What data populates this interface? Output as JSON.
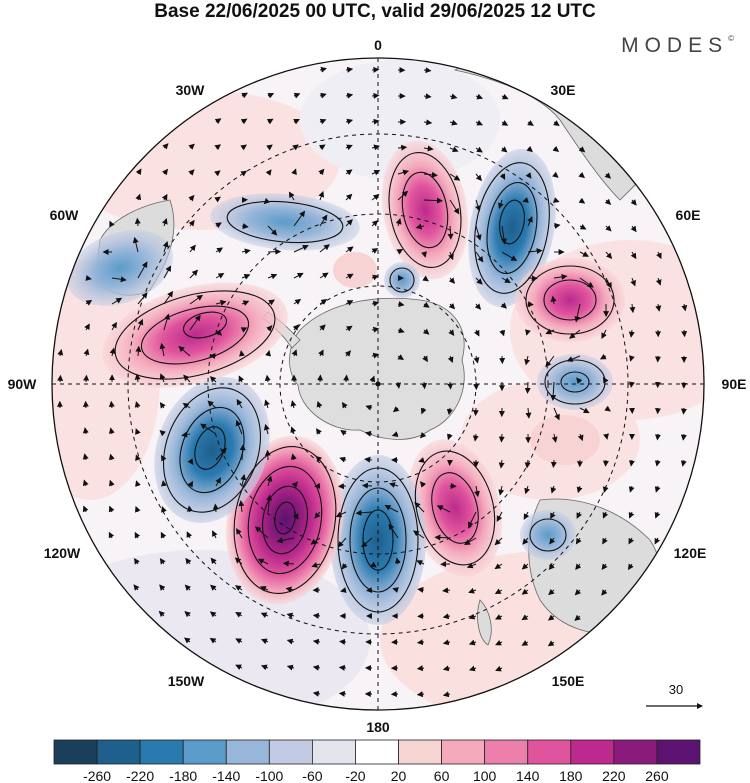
{
  "header": {
    "title": "Base 22/06/2025 00 UTC, valid 29/06/2025 12 UTC",
    "brand": "MODES",
    "brand_mark": "©"
  },
  "map": {
    "projection": "south-polar-stereographic",
    "longitude_labels": {
      "lon_0": "0",
      "lon_30e": "30E",
      "lon_60e": "60E",
      "lon_90e": "90E",
      "lon_120e": "120E",
      "lon_150e": "150E",
      "lon_180": "180",
      "lon_150w": "150W",
      "lon_120w": "120W",
      "lon_90w": "90W",
      "lon_60w": "60W",
      "lon_30w": "30W"
    },
    "reference_vector_label": "30",
    "anomaly_centers": [
      {
        "id": "A",
        "sign": "positive",
        "lon_label": "10E",
        "amplitude": 140
      },
      {
        "id": "B",
        "sign": "negative",
        "lon_label": "40E",
        "amplitude": -180
      },
      {
        "id": "C",
        "sign": "positive",
        "lon_label": "65E",
        "amplitude": 140
      },
      {
        "id": "D",
        "sign": "negative",
        "lon_label": "90E",
        "amplitude": -100
      },
      {
        "id": "E",
        "sign": "positive",
        "lon_label": "150E",
        "amplitude": 140
      },
      {
        "id": "F",
        "sign": "negative",
        "lon_label": "175E",
        "amplitude": -220
      },
      {
        "id": "G",
        "sign": "positive",
        "lon_label": "155W",
        "amplitude": 260
      },
      {
        "id": "H",
        "sign": "negative",
        "lon_label": "125W",
        "amplitude": -180
      },
      {
        "id": "I",
        "sign": "positive",
        "lon_label": "75W",
        "amplitude": 180
      },
      {
        "id": "J",
        "sign": "negative",
        "lon_label": "45W",
        "amplitude": -100
      },
      {
        "id": "K",
        "sign": "negative",
        "lon_label": "60W",
        "amplitude": -100
      }
    ]
  },
  "colorbar": {
    "labels": [
      "-260",
      "-220",
      "-180",
      "-140",
      "-100",
      "-60",
      "-20",
      "20",
      "60",
      "100",
      "140",
      "180",
      "220",
      "260"
    ],
    "colors": [
      "#1a3f5c",
      "#1f5f8b",
      "#2a7ab0",
      "#5b9bc9",
      "#98b6d9",
      "#c3cbe3",
      "#e4e4ef",
      "#ffffff",
      "#f8d3d3",
      "#f4a9bc",
      "#ec7fab",
      "#e0549d",
      "#bb2a8c",
      "#8a1a7c",
      "#5c1270"
    ]
  }
}
